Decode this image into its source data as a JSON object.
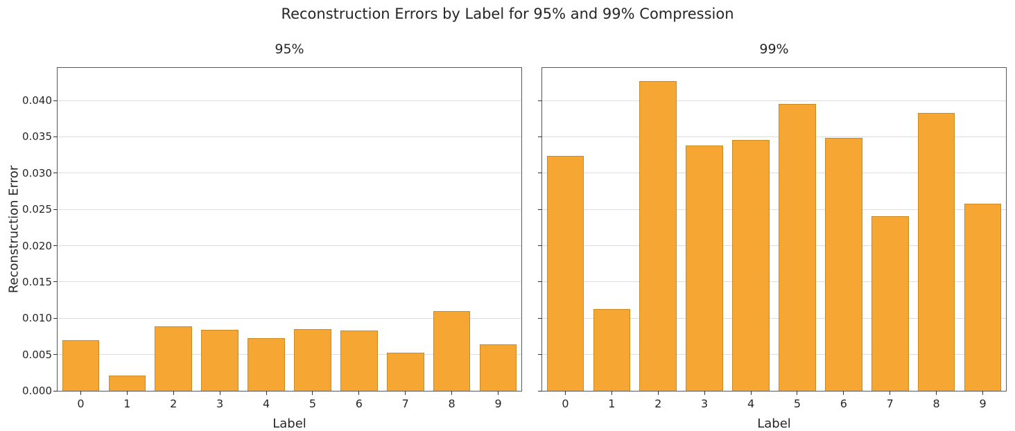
{
  "title": "Reconstruction Errors by Label for 95% and 99% Compression",
  "chart_data": [
    {
      "type": "bar",
      "title": "95%",
      "xlabel": "Label",
      "ylabel": "Reconstruction Error",
      "categories": [
        "0",
        "1",
        "2",
        "3",
        "4",
        "5",
        "6",
        "7",
        "8",
        "9"
      ],
      "values": [
        0.007,
        0.0021,
        0.0089,
        0.0084,
        0.0073,
        0.0085,
        0.0083,
        0.0053,
        0.011,
        0.0064
      ],
      "ylim": [
        0,
        0.0445
      ],
      "yticks": [
        0,
        0.005,
        0.01,
        0.015,
        0.02,
        0.025,
        0.03,
        0.035,
        0.04
      ],
      "ytick_labels": [
        "0.000",
        "0.005",
        "0.010",
        "0.015",
        "0.020",
        "0.025",
        "0.030",
        "0.035",
        "0.040"
      ],
      "show_ytick_labels": true,
      "grid": true,
      "legend": "none",
      "bar_color": "#F6A632"
    },
    {
      "type": "bar",
      "title": "99%",
      "xlabel": "Label",
      "ylabel": "",
      "categories": [
        "0",
        "1",
        "2",
        "3",
        "4",
        "5",
        "6",
        "7",
        "8",
        "9"
      ],
      "values": [
        0.0324,
        0.0113,
        0.0427,
        0.0338,
        0.0346,
        0.0395,
        0.0349,
        0.0241,
        0.0383,
        0.0258
      ],
      "ylim": [
        0,
        0.0445
      ],
      "yticks": [
        0,
        0.005,
        0.01,
        0.015,
        0.02,
        0.025,
        0.03,
        0.035,
        0.04
      ],
      "ytick_labels": [
        "0.000",
        "0.005",
        "0.010",
        "0.015",
        "0.020",
        "0.025",
        "0.030",
        "0.035",
        "0.040"
      ],
      "show_ytick_labels": false,
      "grid": true,
      "legend": "none",
      "bar_color": "#F6A632"
    }
  ]
}
